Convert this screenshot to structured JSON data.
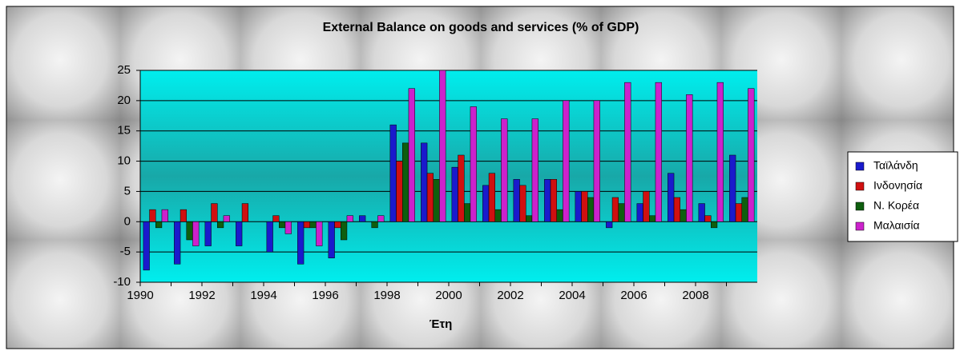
{
  "chart_data": {
    "type": "bar",
    "title": "External Balance on goods and services (% of GDP)",
    "x_label": "Έτη",
    "categories": [
      "1990",
      null,
      "1992",
      null,
      "1994",
      null,
      "1996",
      null,
      "1998",
      null,
      "2000",
      null,
      "2002",
      null,
      "2004",
      null,
      "2006",
      null,
      "2008",
      null
    ],
    "series": [
      {
        "name": "Ταϊλάνδη",
        "color": "#1a1acc",
        "values": [
          -8,
          -7,
          -4,
          -4,
          -5,
          -7,
          -6,
          1,
          16,
          13,
          9,
          6,
          7,
          7,
          5,
          -1,
          3,
          8,
          3,
          11
        ]
      },
      {
        "name": "Ινδονησία",
        "color": "#d01010",
        "values": [
          2,
          2,
          3,
          3,
          1,
          -1,
          -1,
          0,
          10,
          8,
          11,
          8,
          6,
          7,
          5,
          4,
          5,
          4,
          1,
          3
        ]
      },
      {
        "name": "Ν. Κορέα",
        "color": "#0e5e0e",
        "values": [
          -1,
          -3,
          -1,
          0,
          -1,
          -1,
          -3,
          -1,
          13,
          7,
          3,
          2,
          1,
          2,
          4,
          3,
          1,
          2,
          -1,
          4
        ]
      },
      {
        "name": "Μαλαισία",
        "color": "#cc22cc",
        "values": [
          2,
          -4,
          1,
          0,
          -2,
          -4,
          1,
          1,
          22,
          25,
          19,
          17,
          17,
          20,
          20,
          23,
          23,
          21,
          23,
          22
        ]
      }
    ],
    "ylim": [
      -10,
      25
    ],
    "yticks": [
      -10,
      -5,
      0,
      5,
      10,
      15,
      20,
      25
    ],
    "grid": true,
    "legend": "right"
  }
}
